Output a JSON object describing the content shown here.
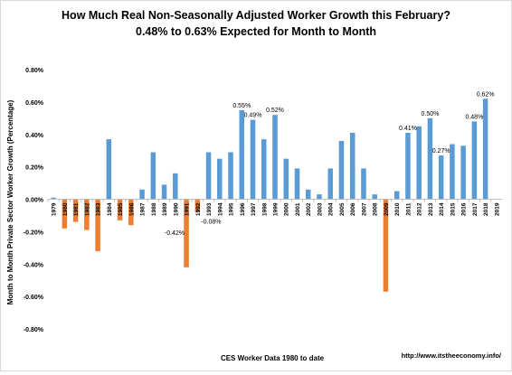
{
  "chart_data": {
    "type": "bar",
    "title": "How Much Real Non-Seasonally Adjusted Worker Growth this February?",
    "subtitle": "0.48% to 0.63% Expected for Month to Month",
    "xlabel": "CES Worker Data 1980 to date",
    "ylabel": "Month to Month Private Sector Worker Growth (Percentage)",
    "source": "http://www.itstheeconomy.info/",
    "ylim": [
      -0.8,
      0.8
    ],
    "yticks": [
      "0.80%",
      "0.60%",
      "0.40%",
      "0.20%",
      "0.00%",
      "-0.20%",
      "-0.40%",
      "-0.60%",
      "-0.80%"
    ],
    "grid": false,
    "legend": "none",
    "categories": [
      "1979",
      "1980",
      "1981",
      "1982",
      "1983",
      "1984",
      "1985",
      "1986",
      "1987",
      "1988",
      "1989",
      "1990",
      "1991",
      "1992",
      "1993",
      "1994",
      "1995",
      "1996",
      "1997",
      "1998",
      "1999",
      "2000",
      "2001",
      "2002",
      "2003",
      "2004",
      "2005",
      "2006",
      "2007",
      "2008",
      "2009",
      "2010",
      "2011",
      "2012",
      "2013",
      "2014",
      "2015",
      "2016",
      "2017",
      "2018",
      "2019"
    ],
    "values": [
      0.01,
      -0.18,
      -0.14,
      -0.19,
      -0.32,
      0.37,
      -0.13,
      -0.16,
      0.06,
      0.29,
      0.09,
      0.16,
      -0.42,
      -0.08,
      0.29,
      0.25,
      0.29,
      0.55,
      0.49,
      0.37,
      0.52,
      0.25,
      0.19,
      0.06,
      0.03,
      0.19,
      0.36,
      0.41,
      0.19,
      0.03,
      -0.57,
      0.05,
      0.41,
      0.45,
      0.5,
      0.27,
      0.34,
      0.33,
      0.48,
      0.62,
      0
    ],
    "data_labels": [
      {
        "category": "1991",
        "text": "-0.42%"
      },
      {
        "category": "1992",
        "text": "-0.08%"
      },
      {
        "category": "1996",
        "text": "0.55%"
      },
      {
        "category": "1997",
        "text": "0.49%"
      },
      {
        "category": "1999",
        "text": "0.52%"
      },
      {
        "category": "2011",
        "text": "0.41%"
      },
      {
        "category": "2013",
        "text": "0.50%"
      },
      {
        "category": "2014",
        "text": "0.27%"
      },
      {
        "category": "2017",
        "text": "0.48%"
      },
      {
        "category": "2018",
        "text": "0.62%"
      }
    ],
    "colors": {
      "positive": "#5b9bd5",
      "negative": "#ed7d31",
      "axis": "#bfbfbf",
      "text": "#000000"
    }
  }
}
